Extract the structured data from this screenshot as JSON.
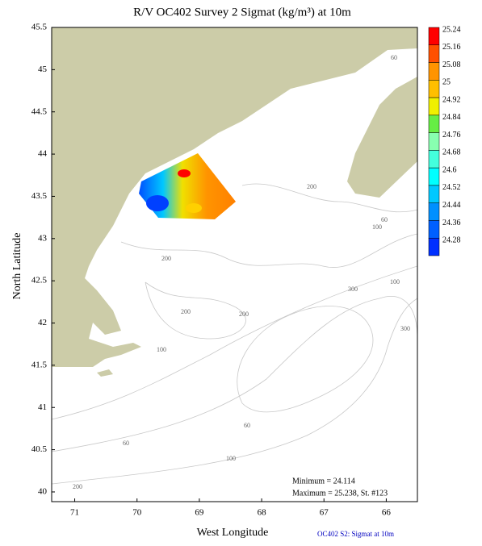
{
  "map": {
    "title": "R/V OC402 Survey 2 Sigmat (kg/m³) at 10m",
    "xlabel": "West Longitude",
    "ylabel": "North Latitude",
    "xlim": [
      71.37,
      65.5
    ],
    "ylim": [
      39.885,
      45.5
    ],
    "xticks": [
      71,
      70,
      69,
      68,
      67,
      66
    ],
    "yticks": [
      45.5,
      45,
      44.5,
      44,
      43.5,
      43,
      42.5,
      42,
      41.5,
      41,
      40.5,
      40
    ],
    "colorbar": {
      "levels": [
        25.24,
        25.16,
        25.08,
        25,
        24.92,
        24.84,
        24.76,
        24.68,
        24.6,
        24.52,
        24.44,
        24.36,
        24.28
      ],
      "colors": [
        "#ff0000",
        "#ff5000",
        "#ff9400",
        "#ffbf00",
        "#f0f000",
        "#66ee44",
        "#88ffb0",
        "#44ffdd",
        "#00ffff",
        "#00c8ff",
        "#0090ff",
        "#0060ff",
        "#0030ff"
      ]
    },
    "contour_labels": [
      "60",
      "200",
      "60",
      "100",
      "200",
      "100",
      "300",
      "200",
      "200",
      "300",
      "100",
      "60",
      "60",
      "100",
      "200"
    ],
    "minimum": "Minimum = 24.114",
    "maximum": "Maximum = 25.238, St. #123",
    "footer": "OC402  S2: Sigmat at 10m"
  }
}
